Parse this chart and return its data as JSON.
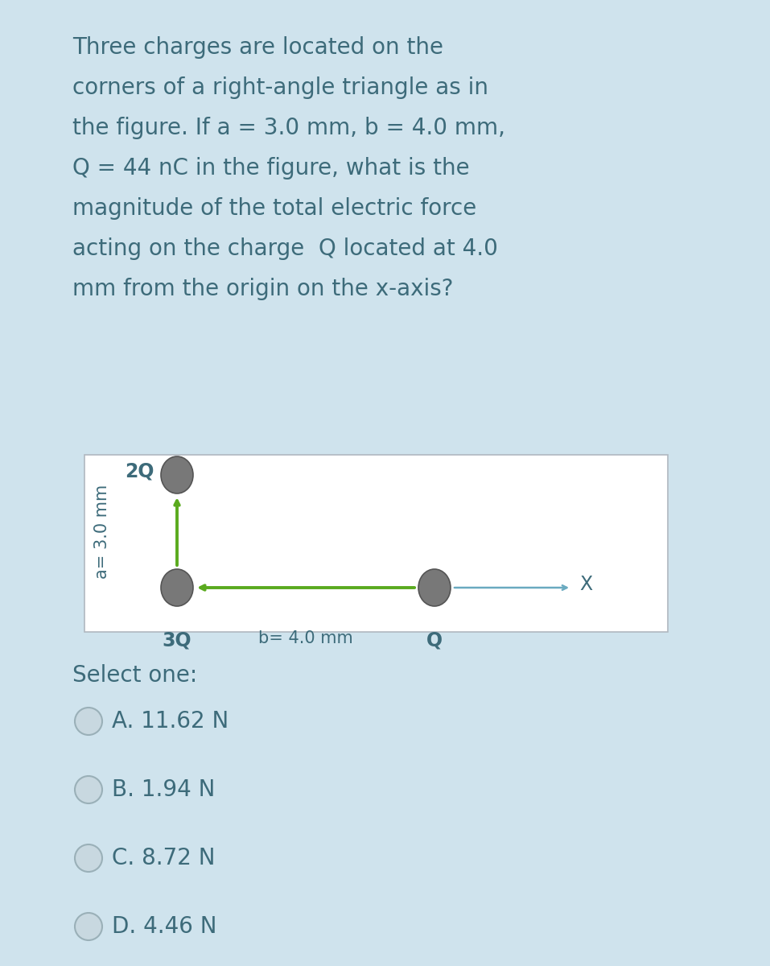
{
  "bg_main": "#cfe3ed",
  "bg_white": "#ffffff",
  "question_lines": [
    "Three charges are located on the",
    "corners of a right-angle triangle as in",
    "the figure. If a = 3.0 mm, b = 4.0 mm,",
    "Q = 44 nC in the figure, what is the",
    "magnitude of the total electric force",
    "acting on the charge  Q located at 4.0",
    "mm from the origin on the x-axis?"
  ],
  "diagram_label_2Q": "2Q",
  "diagram_label_3Q": "3Q",
  "diagram_label_Q": "Q",
  "diagram_label_b": "b= 4.0 mm",
  "diagram_label_a": "a= 3.0 mm",
  "diagram_label_X": "X",
  "select_text": "Select one:",
  "options": [
    "A. 11.62 N",
    "B. 1.94 N",
    "C. 8.72 N",
    "D. 4.46 N"
  ],
  "text_color": "#3d6b7a",
  "arrow_color": "#5aaa1e",
  "axis_arrow_color": "#6aaac0",
  "charge_color": "#787878",
  "charge_edge": "#555555",
  "radio_fill": "#c8d8e0",
  "radio_edge": "#9ab0b8",
  "question_fontsize": 20,
  "select_fontsize": 20,
  "option_fontsize": 20,
  "diag_label_fontsize": 17,
  "diag_small_fontsize": 15
}
